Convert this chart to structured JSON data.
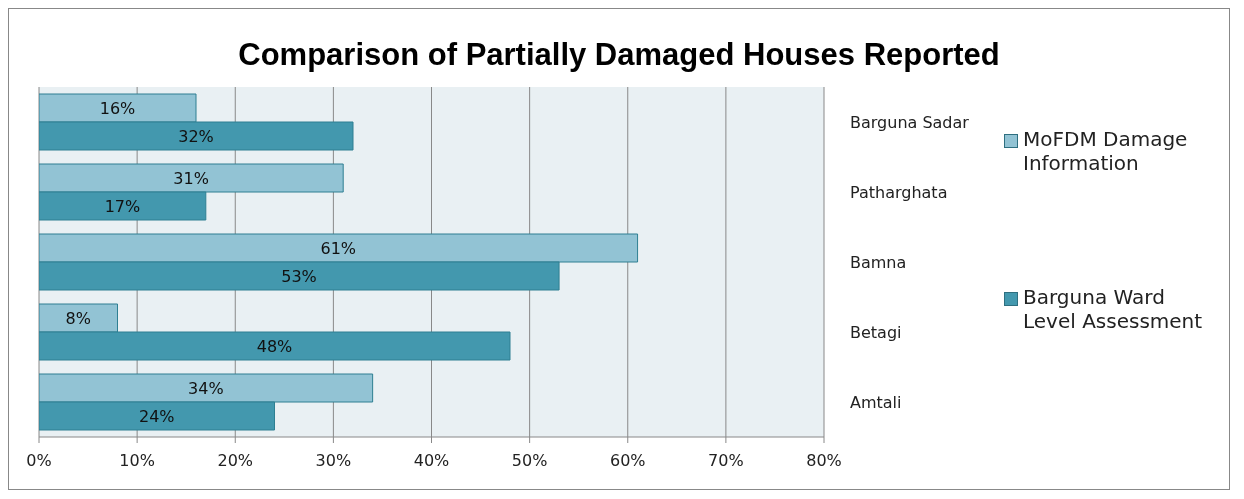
{
  "chart_data": {
    "type": "bar",
    "orientation": "horizontal",
    "title": "Comparison of Partially Damaged Houses Reported",
    "categories": [
      "Barguna Sadar",
      "Patharghata",
      "Bamna",
      "Betagi",
      "Amtali"
    ],
    "series": [
      {
        "name": "MoFDM Damage Information",
        "color": "#92c3d4",
        "values": [
          16,
          31,
          61,
          8,
          34
        ],
        "value_labels": [
          "16%",
          "31%",
          "61%",
          "8%",
          "34%"
        ]
      },
      {
        "name": "Barguna Ward Level Assessment",
        "color": "#4398ae",
        "values": [
          32,
          17,
          53,
          48,
          24
        ],
        "value_labels": [
          "32%",
          "17%",
          "53%",
          "48%",
          "24%"
        ]
      }
    ],
    "xlim": [
      0,
      80
    ],
    "xticks": [
      {
        "value": 0,
        "label": "0%"
      },
      {
        "value": 10,
        "label": "10%"
      },
      {
        "value": 20,
        "label": "20%"
      },
      {
        "value": 30,
        "label": "30%"
      },
      {
        "value": 40,
        "label": "40%"
      },
      {
        "value": 50,
        "label": "50%"
      },
      {
        "value": 60,
        "label": "60%"
      },
      {
        "value": 70,
        "label": "70%"
      },
      {
        "value": 80,
        "label": "80%"
      }
    ],
    "grid": "x",
    "legend": "right"
  }
}
